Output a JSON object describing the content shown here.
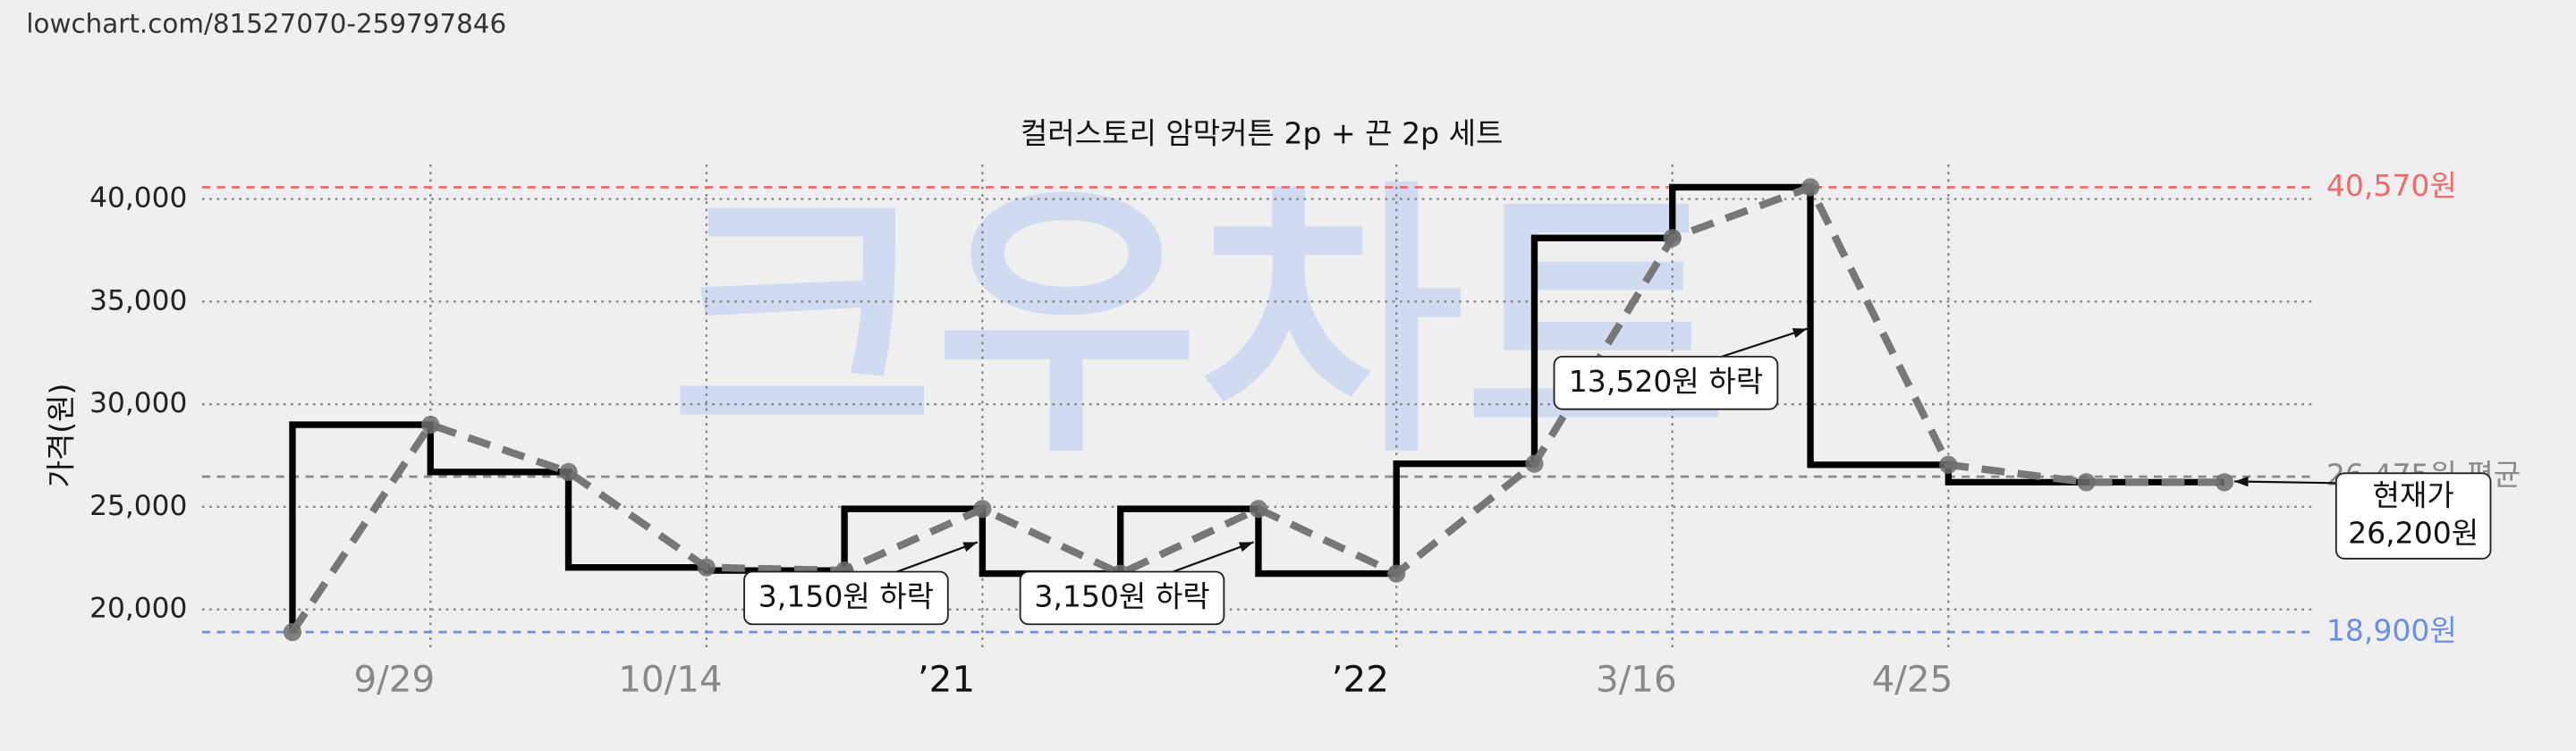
{
  "url": "lowchart.com/81527070-259797846",
  "watermark": "크우차트",
  "chart_data": {
    "type": "price-step",
    "title": "컬러스토리 암막커튼 2p + 끈 2p 세트",
    "y_label": "가격(원)",
    "xlim": [
      -0.655,
      14.667
    ],
    "xticks": [
      {
        "value": 1,
        "label": "9/29"
      },
      {
        "value": 3,
        "label": "10/14"
      },
      {
        "value": 5,
        "label": "’21"
      },
      {
        "value": 8,
        "label": "’22"
      },
      {
        "value": 10,
        "label": "3/16"
      },
      {
        "value": 12,
        "label": "4/25"
      }
    ],
    "ylim": [
      18080,
      41680
    ],
    "yticks": [
      {
        "value": 20000,
        "label": "20,000"
      },
      {
        "value": 25000,
        "label": "25,000"
      },
      {
        "value": 30000,
        "label": "30,000"
      },
      {
        "value": 35000,
        "label": "35,000"
      },
      {
        "value": 40000,
        "label": "40,000"
      }
    ],
    "grid": true,
    "series": [
      {
        "style": "step",
        "color": "#000000",
        "x": [
          0,
          0,
          1,
          2,
          3,
          4,
          5,
          6,
          7,
          8,
          9,
          10,
          11,
          12,
          14
        ],
        "values": [
          18900,
          29000,
          26700,
          22050,
          21900,
          24900,
          21750,
          24900,
          21750,
          27100,
          38100,
          40570,
          27050,
          26200,
          26200
        ]
      },
      {
        "style": "dashed",
        "color": "#777777",
        "x": [
          0,
          1,
          2,
          3,
          4,
          5,
          6,
          7,
          8,
          9,
          10,
          11,
          12,
          13,
          14
        ],
        "values": [
          18900,
          29000,
          26700,
          22050,
          21900,
          24900,
          21750,
          24900,
          21750,
          27100,
          38100,
          40570,
          27050,
          26200,
          26200
        ]
      }
    ],
    "reference_lines": [
      {
        "value": 40570,
        "label": "40,570원",
        "color": "#f06a6a"
      },
      {
        "value": 26475,
        "label": "26,475원 평균",
        "color": "#8a8a8a"
      },
      {
        "value": 18900,
        "label": "18,900원",
        "color": "#6b8fe6"
      }
    ],
    "annotations": [
      "3,150원 하락",
      "3,150원 하락",
      "13,520원 하락",
      "현재가",
      "26,200원"
    ]
  }
}
